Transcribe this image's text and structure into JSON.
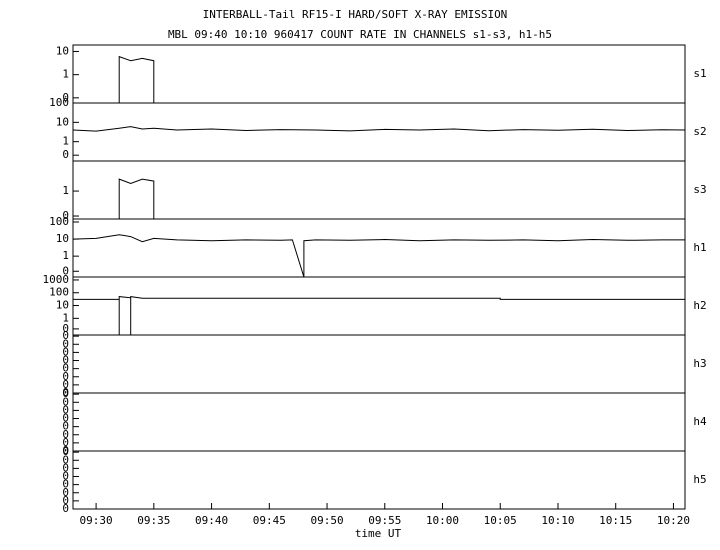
{
  "chart_data": {
    "type": "line",
    "title": "INTERBALL-Tail RF15-I HARD/SOFT X-RAY EMISSION",
    "subtitle": "MBL 09:40 10:10 960417  COUNT RATE IN CHANNELS s1-s3, h1-h5",
    "xlabel": "time UT",
    "color": "#000000",
    "xlim": [
      "09:28",
      "10:21"
    ],
    "xticks": [
      "09:30",
      "09:35",
      "09:40",
      "09:45",
      "09:50",
      "09:55",
      "10:00",
      "10:05",
      "10:10",
      "10:15",
      "10:20"
    ],
    "panels": [
      {
        "name": "s1",
        "log": true,
        "ylim": [
          0.06,
          19
        ],
        "yticks": [
          {
            "value": 0.1,
            "label": "0"
          },
          1,
          10
        ],
        "x": [
          "09:32",
          "09:32",
          "09:33",
          "09:34",
          "09:35",
          "09:35"
        ],
        "values": [
          0.06,
          6,
          4,
          5,
          4,
          0.06
        ]
      },
      {
        "name": "s2",
        "log": true,
        "ylim": [
          0.1,
          100
        ],
        "yticks": [
          {
            "value": 0.2,
            "label": "0"
          },
          1,
          10,
          100
        ],
        "x": [
          "09:28",
          "09:30",
          "09:32",
          "09:33",
          "09:34",
          "09:35",
          "09:37",
          "09:40",
          "09:43",
          "09:46",
          "09:49",
          "09:52",
          "09:55",
          "09:58",
          "10:01",
          "10:04",
          "10:07",
          "10:10",
          "10:13",
          "10:16",
          "10:19",
          "10:21"
        ],
        "values": [
          4,
          3.5,
          5,
          6,
          4.5,
          5,
          4,
          4.5,
          3.8,
          4.2,
          4,
          3.6,
          4.3,
          4,
          4.5,
          3.7,
          4.2,
          3.9,
          4.4,
          3.8,
          4.1,
          4
        ]
      },
      {
        "name": "s3",
        "log": true,
        "ylim": [
          0.076,
          16
        ],
        "yticks": [
          {
            "value": 0.1,
            "label": "0"
          },
          1
        ],
        "x": [
          "09:32",
          "09:32",
          "09:33",
          "09:34",
          "09:35",
          "09:35"
        ],
        "values": [
          0.076,
          3,
          2,
          3,
          2.5,
          0.076
        ]
      },
      {
        "name": "h1",
        "log": true,
        "ylim": [
          0.06,
          150
        ],
        "yticks": [
          {
            "value": 0.13,
            "label": "0"
          },
          1,
          10,
          100
        ],
        "x": [
          "09:28",
          "09:30",
          "09:32",
          "09:33",
          "09:34",
          "09:35",
          "09:37",
          "09:40",
          "09:43",
          "09:46",
          "09:47",
          "09:48",
          "09:48",
          "09:49",
          "09:52",
          "09:55",
          "09:58",
          "10:01",
          "10:04",
          "10:07",
          "10:10",
          "10:13",
          "10:16",
          "10:19",
          "10:21"
        ],
        "values": [
          10,
          11,
          18,
          14,
          7,
          11,
          9,
          8,
          9,
          8.5,
          9,
          0.06,
          8,
          9,
          8.5,
          9.5,
          8,
          9,
          8.5,
          9,
          8,
          9.5,
          8.5,
          9,
          9
        ]
      },
      {
        "name": "h2",
        "log": true,
        "ylim": [
          0.05,
          1700
        ],
        "yticks": [
          {
            "value": 0.15,
            "label": "0"
          },
          1,
          10,
          100,
          1000
        ],
        "x": [
          "09:28",
          "09:32",
          "09:32",
          "09:32",
          "09:33",
          "09:33",
          "09:33",
          "09:34",
          "10:05",
          "10:05",
          "10:21"
        ],
        "values": [
          30,
          30,
          0.05,
          50,
          40,
          0.05,
          50,
          37,
          37,
          30,
          30
        ]
      },
      {
        "name": "h3",
        "log": false,
        "ylim": [
          0,
          0.5
        ],
        "yticks": [
          {
            "value": 0,
            "label": "0"
          },
          {
            "value": 0.07,
            "label": "0"
          },
          {
            "value": 0.14,
            "label": "0"
          },
          {
            "value": 0.21,
            "label": "0"
          },
          {
            "value": 0.28,
            "label": "0"
          },
          {
            "value": 0.35,
            "label": "0"
          },
          {
            "value": 0.42,
            "label": "0"
          },
          {
            "value": 0.49,
            "label": "0"
          }
        ],
        "x": [],
        "values": []
      },
      {
        "name": "h4",
        "log": false,
        "ylim": [
          0,
          0.5
        ],
        "yticks": [
          {
            "value": 0,
            "label": "0"
          },
          {
            "value": 0.07,
            "label": "0"
          },
          {
            "value": 0.14,
            "label": "0"
          },
          {
            "value": 0.21,
            "label": "0"
          },
          {
            "value": 0.28,
            "label": "0"
          },
          {
            "value": 0.35,
            "label": "0"
          },
          {
            "value": 0.42,
            "label": "0"
          },
          {
            "value": 0.49,
            "label": "0"
          }
        ],
        "x": [],
        "values": []
      },
      {
        "name": "h5",
        "log": false,
        "ylim": [
          0,
          0.5
        ],
        "yticks": [
          {
            "value": 0,
            "label": "0"
          },
          {
            "value": 0.07,
            "label": "0"
          },
          {
            "value": 0.14,
            "label": "0"
          },
          {
            "value": 0.21,
            "label": "0"
          },
          {
            "value": 0.28,
            "label": "0"
          },
          {
            "value": 0.35,
            "label": "0"
          },
          {
            "value": 0.42,
            "label": "0"
          },
          {
            "value": 0.49,
            "label": "0"
          }
        ],
        "x": [],
        "values": []
      }
    ]
  }
}
